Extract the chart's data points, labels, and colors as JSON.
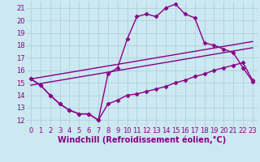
{
  "xlabel": "Windchill (Refroidissement éolien,°C)",
  "background_color": "#cce8f0",
  "line_color": "#880088",
  "grid_color": "#aaccdd",
  "xlim": [
    -0.5,
    23.5
  ],
  "ylim": [
    11.5,
    21.5
  ],
  "yticks": [
    12,
    13,
    14,
    15,
    16,
    17,
    18,
    19,
    20,
    21
  ],
  "xticks": [
    0,
    1,
    2,
    3,
    4,
    5,
    6,
    7,
    8,
    9,
    10,
    11,
    12,
    13,
    14,
    15,
    16,
    17,
    18,
    19,
    20,
    21,
    22,
    23
  ],
  "curve1_x": [
    0,
    1,
    2,
    3,
    4,
    5,
    6,
    7,
    8,
    9,
    10,
    11,
    12,
    13,
    14,
    15,
    16,
    17,
    18,
    19,
    20,
    21,
    22,
    23
  ],
  "curve1_y": [
    15.3,
    14.8,
    14.0,
    13.3,
    12.8,
    12.5,
    12.5,
    12.0,
    13.3,
    13.6,
    14.0,
    14.1,
    14.3,
    14.5,
    14.7,
    15.0,
    15.2,
    15.5,
    15.7,
    16.0,
    16.2,
    16.4,
    16.6,
    15.2
  ],
  "curve2_x": [
    0,
    1,
    2,
    3,
    4,
    5,
    6,
    7,
    8,
    9,
    10,
    11,
    12,
    13,
    14,
    15,
    16,
    17,
    18,
    19,
    20,
    21,
    22,
    23
  ],
  "curve2_y": [
    15.3,
    14.8,
    14.0,
    13.3,
    12.8,
    12.5,
    12.5,
    12.0,
    15.7,
    16.2,
    18.5,
    20.3,
    20.5,
    20.3,
    21.0,
    21.3,
    20.5,
    20.2,
    18.2,
    18.0,
    17.7,
    17.4,
    16.2,
    15.1
  ],
  "line1_x": [
    0,
    23
  ],
  "line1_y": [
    14.8,
    17.8
  ],
  "line2_x": [
    0,
    23
  ],
  "line2_y": [
    15.3,
    18.3
  ],
  "marker": "D",
  "markersize": 2.5,
  "linewidth": 1.0,
  "xlabel_fontsize": 7,
  "tick_fontsize": 6,
  "text_color": "#880088"
}
